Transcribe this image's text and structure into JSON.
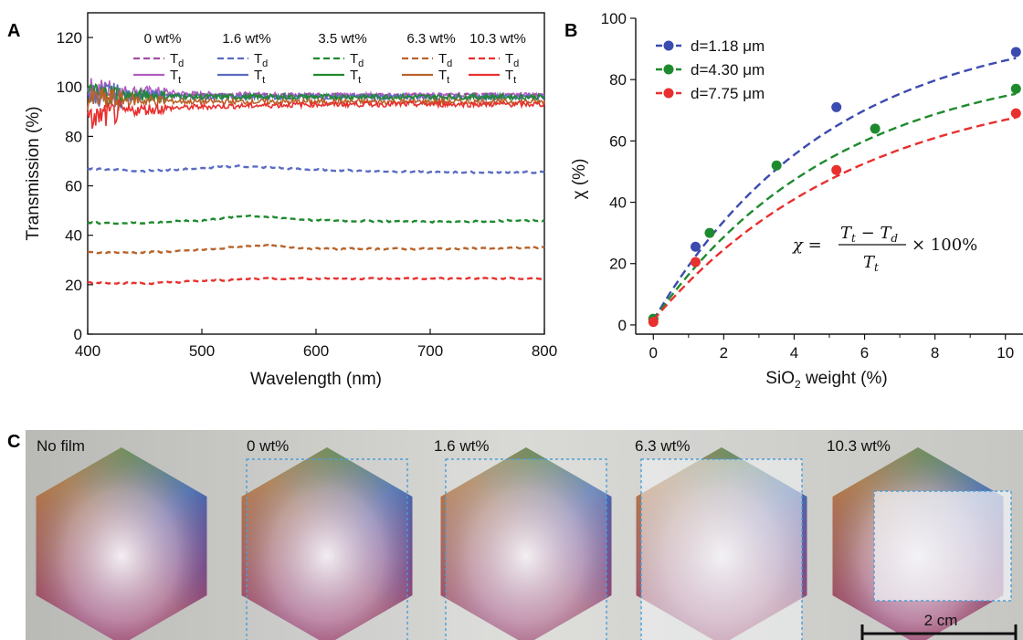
{
  "panel_labels": [
    "A",
    "B",
    "C"
  ],
  "chart_data": [
    {
      "type": "line",
      "panel": "A",
      "xlabel": "Wavelength (nm)",
      "ylabel": "Transmission (%)",
      "xlim": [
        400,
        800
      ],
      "ylim": [
        0,
        130
      ],
      "x_ticks": [
        "400",
        "500",
        "600",
        "700",
        "800"
      ],
      "y_ticks": [
        "0",
        "20",
        "40",
        "60",
        "80",
        "100",
        "120"
      ],
      "legend": {
        "columns": [
          "0 wt%",
          "1.6 wt%",
          "3.5 wt%",
          "6.3 wt%",
          "10.3 wt%"
        ],
        "row_labels": [
          "T",
          "T"
        ],
        "row_subscripts": [
          "d",
          "t"
        ],
        "placement": "top"
      },
      "series": [
        {
          "name": "0 wt% Td",
          "style": "dashed",
          "color": "#a64ca6",
          "x": [
            400,
            800
          ],
          "values": [
            97,
            97
          ]
        },
        {
          "name": "0 wt% Tt",
          "style": "solid",
          "color": "#b05cc0",
          "x": [
            400,
            450,
            500,
            600,
            700,
            800
          ],
          "values": [
            99,
            98,
            97,
            96.5,
            96.5,
            96.5
          ]
        },
        {
          "name": "1.6 wt% Td",
          "style": "dashed",
          "color": "#5a6bc2",
          "x": [
            400,
            450,
            500,
            530,
            600,
            700,
            800
          ],
          "values": [
            67,
            66,
            67,
            68,
            66.5,
            65.5,
            65.5
          ]
        },
        {
          "name": "1.6 wt% Tt",
          "style": "solid",
          "color": "#5a6bc2",
          "x": [
            400,
            500,
            600,
            700,
            800
          ],
          "values": [
            97,
            96,
            96,
            96,
            96
          ]
        },
        {
          "name": "3.5 wt% Td",
          "style": "dashed",
          "color": "#1e8a2e",
          "x": [
            400,
            450,
            500,
            540,
            600,
            700,
            800
          ],
          "values": [
            45,
            45,
            46,
            48,
            46,
            45.5,
            46
          ]
        },
        {
          "name": "3.5 wt% Tt",
          "style": "solid",
          "color": "#1e8a2e",
          "x": [
            400,
            500,
            600,
            700,
            800
          ],
          "values": [
            97,
            96,
            96,
            96,
            96
          ]
        },
        {
          "name": "6.3 wt% Td",
          "style": "dashed",
          "color": "#b8632a",
          "x": [
            400,
            450,
            500,
            550,
            600,
            700,
            800
          ],
          "values": [
            33,
            33,
            34,
            36,
            34.5,
            34.5,
            35
          ]
        },
        {
          "name": "6.3 wt% Tt",
          "style": "solid",
          "color": "#b8632a",
          "x": [
            400,
            500,
            600,
            700,
            800
          ],
          "values": [
            95,
            94,
            94,
            94,
            94
          ]
        },
        {
          "name": "10.3 wt% Td",
          "style": "dashed",
          "color": "#e8302e",
          "x": [
            400,
            450,
            500,
            550,
            600,
            700,
            800
          ],
          "values": [
            21,
            20.5,
            21.5,
            22.5,
            22.5,
            22.5,
            22.5
          ]
        },
        {
          "name": "10.3 wt% Tt",
          "style": "solid",
          "color": "#e8302e",
          "x": [
            400,
            410,
            430,
            450,
            500,
            600,
            700,
            800
          ],
          "values": [
            86,
            88,
            90,
            91,
            92,
            93,
            93,
            93
          ]
        }
      ]
    },
    {
      "type": "scatter",
      "panel": "B",
      "xlabel": "SiO",
      "xlabel_sub": "2",
      "xlabel_rest": " weight (%)",
      "ylabel": "χ (%)",
      "xlim": [
        -0.5,
        10.5
      ],
      "ylim": [
        -3,
        100
      ],
      "x_ticks": [
        "0",
        "2",
        "4",
        "6",
        "8",
        "10"
      ],
      "y_ticks": [
        "0",
        "20",
        "40",
        "60",
        "80",
        "100"
      ],
      "legend_placement": "top-left",
      "formula": {
        "lhs": "χ =",
        "num": "T",
        "num_sub": "t",
        "num_mid": " − T",
        "num_sub2": "d",
        "den": "T",
        "den_sub": "t",
        "rhs": "× 100%"
      },
      "series": [
        {
          "name": "d=1.18 μm",
          "color": "#3b4bb0",
          "x": [
            0,
            1.2,
            5.2,
            10.3
          ],
          "values": [
            2,
            25.5,
            71,
            89
          ],
          "fit": {
            "a": 98,
            "k": 0.2
          }
        },
        {
          "name": "d=4.30 μm",
          "color": "#1e8a2e",
          "x": [
            0,
            1.6,
            3.5,
            6.3,
            10.3
          ],
          "values": [
            2,
            30,
            52,
            64,
            77
          ],
          "fit": {
            "a": 86,
            "k": 0.19
          }
        },
        {
          "name": "d=7.75 μm",
          "color": "#e8302e",
          "x": [
            0,
            1.2,
            5.2,
            10.3
          ],
          "values": [
            1,
            20.5,
            50.5,
            69
          ],
          "fit": {
            "a": 80,
            "k": 0.17
          }
        }
      ]
    }
  ],
  "photos": {
    "labels": [
      "No film",
      "0 wt%",
      "1.6 wt%",
      "6.3 wt%",
      "10.3 wt%"
    ],
    "film_opacity": [
      0,
      0.05,
      0.18,
      0.55,
      0.72
    ],
    "scale_bar": "2 cm"
  }
}
